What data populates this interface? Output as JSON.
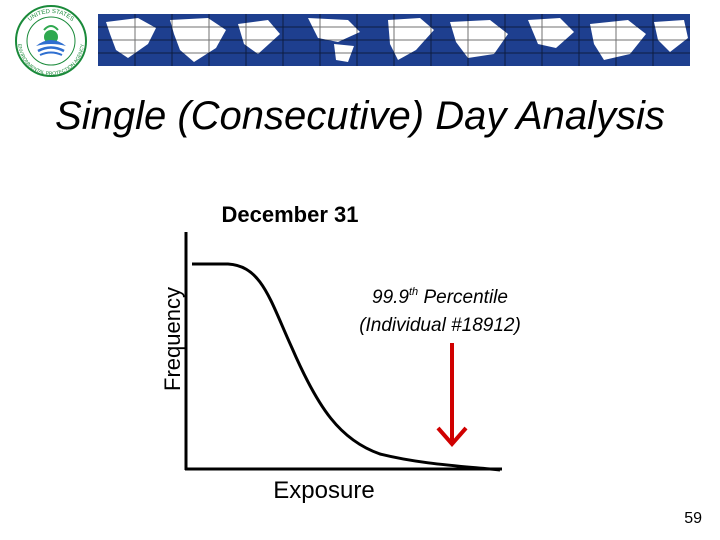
{
  "slide": {
    "title": "Single (Consecutive) Day Analysis",
    "page_number": "59"
  },
  "logo": {
    "text_top": "UNITED STATES",
    "text_bottom": "ENVIRONMENTAL PROTECTION AGENCY"
  },
  "diagram": {
    "heading": "December 31",
    "ylabel": "Frequency",
    "xlabel": "Exposure",
    "annotation": {
      "line1_prefix": "99.9",
      "line1_sup": "th",
      "line1_suffix": " Percentile",
      "line2": "(Individual #18912)"
    },
    "colors": {
      "curve": "#000000",
      "arrow": "#d00000",
      "map_ocean": "#1e3f8f",
      "map_land": "#ffffff"
    }
  }
}
